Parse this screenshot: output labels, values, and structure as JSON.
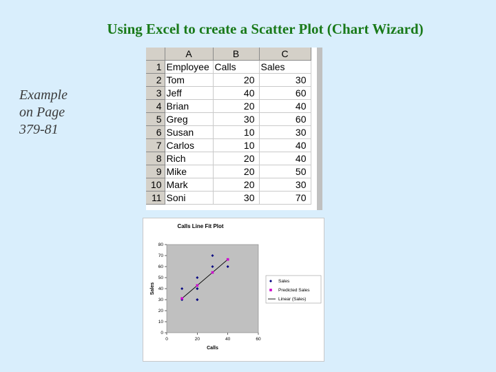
{
  "slide": {
    "title": "Using Excel to create a Scatter Plot (Chart Wizard)",
    "caption_lines": [
      "Example",
      "on Page",
      "379-81"
    ]
  },
  "spreadsheet": {
    "column_headers": [
      "A",
      "B",
      "C"
    ],
    "rows": [
      {
        "row": "1",
        "cells": [
          "Employee",
          "Calls",
          "Sales"
        ]
      },
      {
        "row": "2",
        "cells": [
          "Tom",
          "20",
          "30"
        ]
      },
      {
        "row": "3",
        "cells": [
          "Jeff",
          "40",
          "60"
        ]
      },
      {
        "row": "4",
        "cells": [
          "Brian",
          "20",
          "40"
        ]
      },
      {
        "row": "5",
        "cells": [
          "Greg",
          "30",
          "60"
        ]
      },
      {
        "row": "6",
        "cells": [
          "Susan",
          "10",
          "30"
        ]
      },
      {
        "row": "7",
        "cells": [
          "Carlos",
          "10",
          "40"
        ]
      },
      {
        "row": "8",
        "cells": [
          "Rich",
          "20",
          "40"
        ]
      },
      {
        "row": "9",
        "cells": [
          "Mike",
          "20",
          "50"
        ]
      },
      {
        "row": "10",
        "cells": [
          "Mark",
          "20",
          "30"
        ]
      },
      {
        "row": "11",
        "cells": [
          "Soni",
          "30",
          "70"
        ]
      }
    ]
  },
  "chart_data": {
    "type": "scatter",
    "title": "Calls Line Fit  Plot",
    "xlabel": "Calls",
    "ylabel": "Sales",
    "xlim": [
      0,
      60
    ],
    "ylim": [
      0,
      80
    ],
    "xticks": [
      0,
      20,
      40,
      60
    ],
    "yticks": [
      0,
      10,
      20,
      30,
      40,
      50,
      60,
      70,
      80
    ],
    "plot_background": "#c0c0c0",
    "series": [
      {
        "name": "Sales",
        "color": "#000080",
        "marker": "diamond",
        "points": [
          [
            20,
            30
          ],
          [
            40,
            60
          ],
          [
            20,
            40
          ],
          [
            30,
            60
          ],
          [
            10,
            30
          ],
          [
            10,
            40
          ],
          [
            20,
            40
          ],
          [
            20,
            50
          ],
          [
            20,
            30
          ],
          [
            30,
            70
          ]
        ]
      },
      {
        "name": "Predicted Sales",
        "color": "#cc00cc",
        "marker": "square",
        "points": [
          [
            10,
            31.1
          ],
          [
            20,
            42.9
          ],
          [
            30,
            54.7
          ],
          [
            40,
            66.5
          ]
        ]
      },
      {
        "name": "Linear (Sales)",
        "color": "#000000",
        "marker": "line",
        "line": [
          [
            10,
            31.1
          ],
          [
            40,
            66.5
          ]
        ]
      }
    ],
    "legend_position": "right"
  }
}
